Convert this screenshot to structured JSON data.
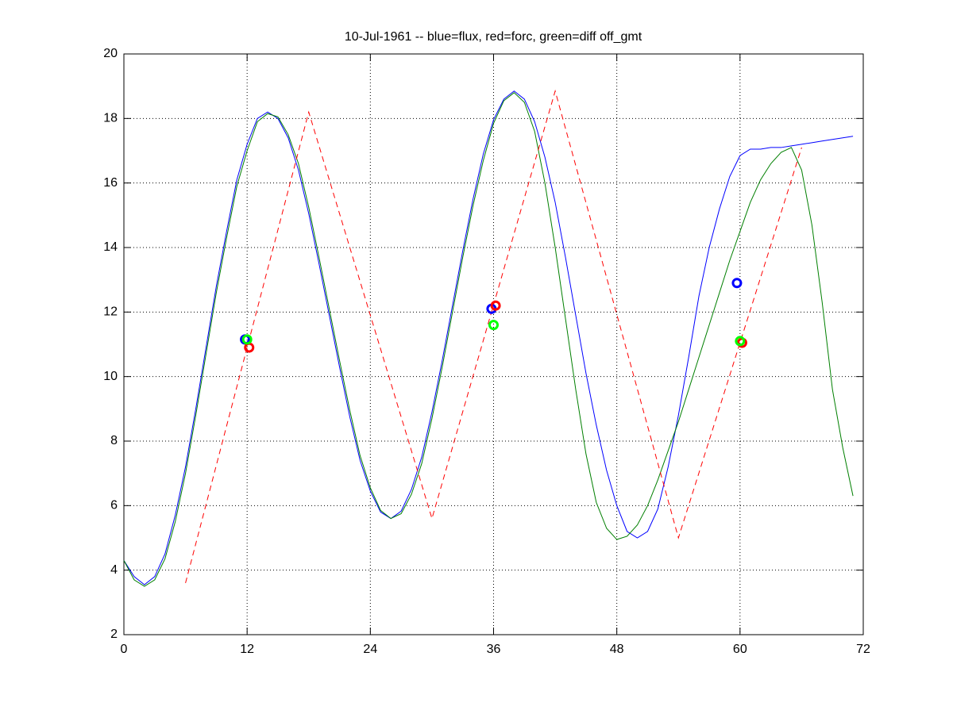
{
  "chart_data": {
    "type": "line",
    "title": "10-Jul-1961 -- blue=flux, red=forc, green=diff off_gmt",
    "xlim": [
      0,
      72
    ],
    "xticks": [
      0,
      12,
      24,
      36,
      48,
      60,
      72
    ],
    "ylim": [
      2,
      20
    ],
    "yticks": [
      2,
      4,
      6,
      8,
      10,
      12,
      14,
      16,
      18,
      20
    ],
    "grid": true,
    "series": [
      {
        "color": "#0000ff",
        "dash": false,
        "x": [
          0,
          1,
          2,
          3,
          4,
          5,
          6,
          7,
          8,
          9,
          10,
          11,
          12,
          13,
          14,
          15,
          16,
          17,
          18,
          19,
          20,
          21,
          22,
          23,
          24,
          25,
          26,
          27,
          28,
          29,
          30,
          31,
          32,
          33,
          34,
          35,
          36,
          37,
          38,
          39,
          40,
          41,
          42,
          43,
          44,
          45,
          46,
          47,
          48,
          49,
          50,
          51,
          52,
          53,
          54,
          55,
          56,
          57,
          58,
          59,
          60,
          61,
          62,
          63,
          64,
          65,
          66,
          67,
          68,
          69,
          70,
          71
        ],
        "values": [
          4.3,
          3.8,
          3.55,
          3.8,
          4.5,
          5.7,
          7.2,
          9.0,
          10.9,
          12.8,
          14.5,
          16.1,
          17.2,
          18.0,
          18.2,
          18.0,
          17.4,
          16.4,
          15.05,
          13.5,
          11.9,
          10.3,
          8.75,
          7.4,
          6.45,
          5.8,
          5.6,
          5.83,
          6.5,
          7.5,
          8.9,
          10.5,
          12.2,
          13.9,
          15.5,
          16.9,
          17.96,
          18.6,
          18.85,
          18.6,
          17.9,
          16.8,
          15.4,
          13.7,
          11.9,
          10.1,
          8.5,
          7.1,
          6.0,
          5.2,
          5.0,
          5.2,
          5.9,
          7.2,
          8.8,
          10.6,
          12.5,
          14.0,
          15.2,
          16.2,
          16.85,
          17.05,
          17.05,
          17.1,
          17.1,
          17.15,
          17.2,
          17.25,
          17.3,
          17.35,
          17.4,
          17.45
        ]
      },
      {
        "color": "#007f00",
        "dash": false,
        "x": [
          0,
          1,
          2,
          3,
          4,
          5,
          6,
          7,
          8,
          9,
          10,
          11,
          12,
          13,
          14,
          15,
          16,
          17,
          18,
          19,
          20,
          21,
          22,
          23,
          24,
          25,
          26,
          27,
          28,
          29,
          30,
          31,
          32,
          33,
          34,
          35,
          36,
          37,
          38,
          39,
          40,
          41,
          42,
          43,
          44,
          45,
          46,
          47,
          48,
          49,
          50,
          51,
          52,
          53,
          54,
          55,
          56,
          57,
          58,
          59,
          60,
          61,
          62,
          63,
          64,
          65,
          66,
          67,
          68,
          69,
          70,
          71
        ],
        "values": [
          4.3,
          3.7,
          3.5,
          3.7,
          4.35,
          5.5,
          7.0,
          8.8,
          10.7,
          12.6,
          14.3,
          15.9,
          17.0,
          17.9,
          18.15,
          18.05,
          17.5,
          16.6,
          15.25,
          13.7,
          12.1,
          10.5,
          8.95,
          7.55,
          6.55,
          5.85,
          5.6,
          5.75,
          6.35,
          7.3,
          8.7,
          10.3,
          12.0,
          13.7,
          15.3,
          16.7,
          17.85,
          18.55,
          18.8,
          18.5,
          17.6,
          16.0,
          14.0,
          11.8,
          9.6,
          7.6,
          6.1,
          5.3,
          4.95,
          5.05,
          5.4,
          6.0,
          6.8,
          7.7,
          8.6,
          9.6,
          10.6,
          11.6,
          12.6,
          13.6,
          14.5,
          15.4,
          16.1,
          16.6,
          16.95,
          17.1,
          16.4,
          14.7,
          12.3,
          9.6,
          7.8,
          6.3
        ]
      },
      {
        "color": "#ff0000",
        "dash": true,
        "x": [
          6,
          18,
          30,
          42,
          54,
          66
        ],
        "values": [
          3.6,
          18.2,
          5.6,
          18.85,
          5.0,
          17.1
        ]
      }
    ],
    "markers": [
      {
        "color": "#0000ff",
        "x": [
          11.8,
          35.8,
          59.7
        ],
        "values": [
          11.15,
          12.1,
          12.9
        ]
      },
      {
        "color": "#ff0000",
        "x": [
          12.2,
          36.2,
          60.2
        ],
        "values": [
          10.9,
          12.2,
          11.05
        ]
      },
      {
        "color": "#00ff00",
        "x": [
          12.0,
          36.0,
          60.0
        ],
        "values": [
          11.15,
          11.6,
          11.1
        ]
      }
    ]
  }
}
